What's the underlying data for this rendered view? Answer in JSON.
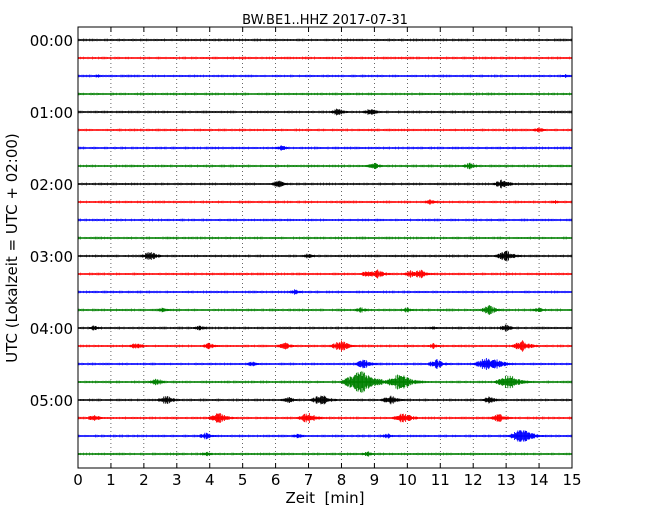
{
  "chart_data": {
    "type": "line",
    "title": "BW.BE1..HHZ 2017-07-31",
    "xlabel": "Zeit  [min]",
    "ylabel": "UTC (Lokalzeit = UTC + 02:00)",
    "xlim": [
      0,
      15
    ],
    "x_ticks": [
      "0",
      "1",
      "2",
      "3",
      "4",
      "5",
      "6",
      "7",
      "8",
      "9",
      "10",
      "11",
      "12",
      "13",
      "14",
      "15"
    ],
    "y_ticks": [
      "00:00",
      "01:00",
      "02:00",
      "03:00",
      "04:00",
      "05:00"
    ],
    "grid": "vertical dotted",
    "trace_colors": [
      "#000000",
      "#ff0000",
      "#0000ff",
      "#008000"
    ],
    "traces": [
      {
        "start": "00:00",
        "events": []
      },
      {
        "start": "00:15",
        "events": []
      },
      {
        "start": "00:30",
        "events": [
          {
            "x": 0.6,
            "a": 2
          },
          {
            "x": 14.8,
            "a": 2
          }
        ]
      },
      {
        "start": "00:45",
        "events": []
      },
      {
        "start": "01:00",
        "events": [
          {
            "x": 7.9,
            "a": 4
          },
          {
            "x": 8.9,
            "a": 4
          }
        ]
      },
      {
        "start": "01:15",
        "events": [
          {
            "x": 14.0,
            "a": 3
          }
        ]
      },
      {
        "start": "01:30",
        "events": [
          {
            "x": 6.2,
            "a": 3
          }
        ]
      },
      {
        "start": "01:45",
        "events": [
          {
            "x": 9.0,
            "a": 4
          },
          {
            "x": 11.9,
            "a": 4
          }
        ]
      },
      {
        "start": "02:00",
        "events": [
          {
            "x": 6.1,
            "a": 4
          },
          {
            "x": 12.9,
            "a": 5
          }
        ]
      },
      {
        "start": "02:15",
        "events": [
          {
            "x": 10.7,
            "a": 3
          },
          {
            "x": 14.5,
            "a": 2
          }
        ]
      },
      {
        "start": "02:30",
        "events": []
      },
      {
        "start": "02:45",
        "events": []
      },
      {
        "start": "03:00",
        "events": [
          {
            "x": 2.2,
            "a": 5
          },
          {
            "x": 7.0,
            "a": 3
          },
          {
            "x": 13.0,
            "a": 6
          }
        ]
      },
      {
        "start": "03:15",
        "events": [
          {
            "x": 8.8,
            "a": 4
          },
          {
            "x": 9.1,
            "a": 5
          },
          {
            "x": 10.1,
            "a": 4
          },
          {
            "x": 10.4,
            "a": 5
          }
        ]
      },
      {
        "start": "03:30",
        "events": [
          {
            "x": 6.6,
            "a": 3
          }
        ]
      },
      {
        "start": "03:45",
        "events": [
          {
            "x": 2.6,
            "a": 3
          },
          {
            "x": 8.6,
            "a": 3
          },
          {
            "x": 10.0,
            "a": 3
          },
          {
            "x": 12.5,
            "a": 5
          },
          {
            "x": 14.0,
            "a": 3
          }
        ]
      },
      {
        "start": "04:00",
        "events": [
          {
            "x": 0.5,
            "a": 3
          },
          {
            "x": 3.7,
            "a": 3
          },
          {
            "x": 10.8,
            "a": 2
          },
          {
            "x": 13.0,
            "a": 4
          }
        ]
      },
      {
        "start": "04:15",
        "events": [
          {
            "x": 1.8,
            "a": 4
          },
          {
            "x": 4.0,
            "a": 4
          },
          {
            "x": 6.3,
            "a": 4
          },
          {
            "x": 8.0,
            "a": 6
          },
          {
            "x": 10.8,
            "a": 3
          },
          {
            "x": 13.5,
            "a": 6
          }
        ]
      },
      {
        "start": "04:30",
        "events": [
          {
            "x": 5.3,
            "a": 3
          },
          {
            "x": 8.7,
            "a": 5
          },
          {
            "x": 10.9,
            "a": 5
          },
          {
            "x": 12.4,
            "a": 7
          },
          {
            "x": 12.7,
            "a": 6
          }
        ]
      },
      {
        "start": "04:45",
        "events": [
          {
            "x": 2.4,
            "a": 4
          },
          {
            "x": 8.6,
            "a": 12
          },
          {
            "x": 9.8,
            "a": 9
          },
          {
            "x": 13.1,
            "a": 8
          }
        ]
      },
      {
        "start": "05:00",
        "events": [
          {
            "x": 2.7,
            "a": 5
          },
          {
            "x": 6.4,
            "a": 4
          },
          {
            "x": 7.4,
            "a": 6
          },
          {
            "x": 9.5,
            "a": 5
          },
          {
            "x": 12.5,
            "a": 4
          }
        ]
      },
      {
        "start": "05:15",
        "events": [
          {
            "x": 0.5,
            "a": 4
          },
          {
            "x": 4.3,
            "a": 6
          },
          {
            "x": 7.0,
            "a": 6
          },
          {
            "x": 9.9,
            "a": 6
          },
          {
            "x": 12.8,
            "a": 5
          }
        ]
      },
      {
        "start": "05:30",
        "events": [
          {
            "x": 3.9,
            "a": 4
          },
          {
            "x": 6.7,
            "a": 3
          },
          {
            "x": 9.4,
            "a": 3
          },
          {
            "x": 13.5,
            "a": 8
          }
        ]
      },
      {
        "start": "05:45",
        "events": [
          {
            "x": 3.9,
            "a": 3
          },
          {
            "x": 8.8,
            "a": 3
          }
        ]
      }
    ]
  }
}
